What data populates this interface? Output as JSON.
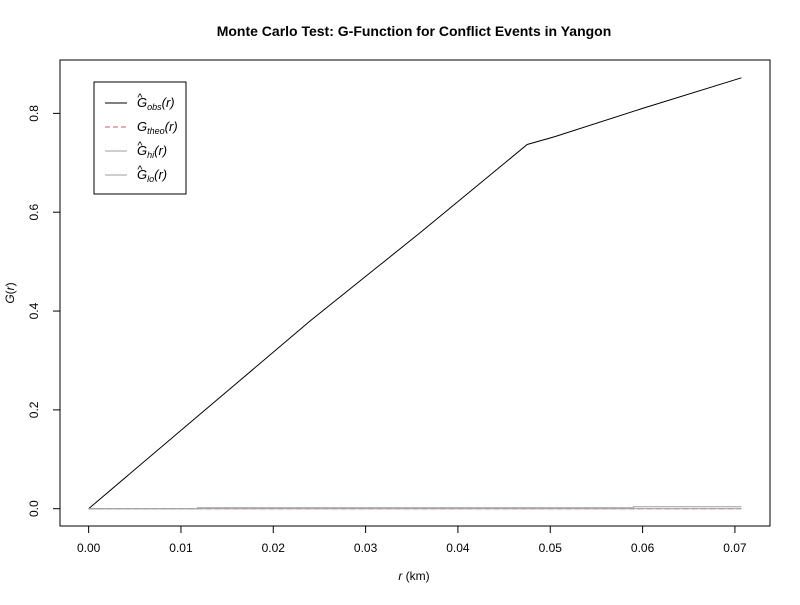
{
  "chart_data": {
    "type": "line",
    "title": "Monte Carlo Test: G-Function for Conflict Events in Yangon",
    "xlabel": {
      "var": "r",
      "unit": " (km)"
    },
    "ylabel": {
      "fn": "G",
      "arg": "r"
    },
    "xlim": [
      -0.0031,
      0.0738
    ],
    "ylim": [
      -0.035,
      0.908
    ],
    "x_ticks": [
      0.0,
      0.01,
      0.02,
      0.03,
      0.04,
      0.05,
      0.06,
      0.07
    ],
    "x_tick_labels": [
      "0.00",
      "0.01",
      "0.02",
      "0.03",
      "0.04",
      "0.05",
      "0.06",
      "0.07"
    ],
    "y_ticks": [
      0.0,
      0.2,
      0.4,
      0.6,
      0.8
    ],
    "y_tick_labels": [
      "0.0",
      "0.2",
      "0.4",
      "0.6",
      "0.8"
    ],
    "grid": false,
    "legend_position": "top-left",
    "series": [
      {
        "name": "Ĝobs(r)",
        "sym": "G",
        "hat": true,
        "sub": "obs",
        "arg": "r",
        "color": "#000000",
        "dash": "",
        "x": [
          0.0,
          0.012,
          0.024,
          0.036,
          0.0475,
          0.0505,
          0.06,
          0.0707
        ],
        "y": [
          0.0,
          0.19,
          0.38,
          0.56,
          0.737,
          0.753,
          0.81,
          0.872
        ]
      },
      {
        "name": "Gtheo(r)",
        "sym": "G",
        "hat": false,
        "sub": "theo",
        "arg": "r",
        "color": "#DF536B",
        "dash": "6,3",
        "x": [
          0.0,
          0.0707
        ],
        "y": [
          0.0,
          0.0
        ]
      },
      {
        "name": "Ĝhi(r)",
        "sym": "G",
        "hat": true,
        "sub": "hi",
        "arg": "r",
        "color": "#9E9E9E",
        "dash": "",
        "x": [
          0.0,
          0.0118,
          0.0118,
          0.059,
          0.059,
          0.0707
        ],
        "y": [
          0.0,
          0.0,
          0.002,
          0.002,
          0.004,
          0.004
        ]
      },
      {
        "name": "Ĝlo(r)",
        "sym": "G",
        "hat": true,
        "sub": "lo",
        "arg": "r",
        "color": "#9E9E9E",
        "dash": "",
        "x": [
          0.0,
          0.0707
        ],
        "y": [
          0.0,
          0.0
        ]
      }
    ]
  }
}
